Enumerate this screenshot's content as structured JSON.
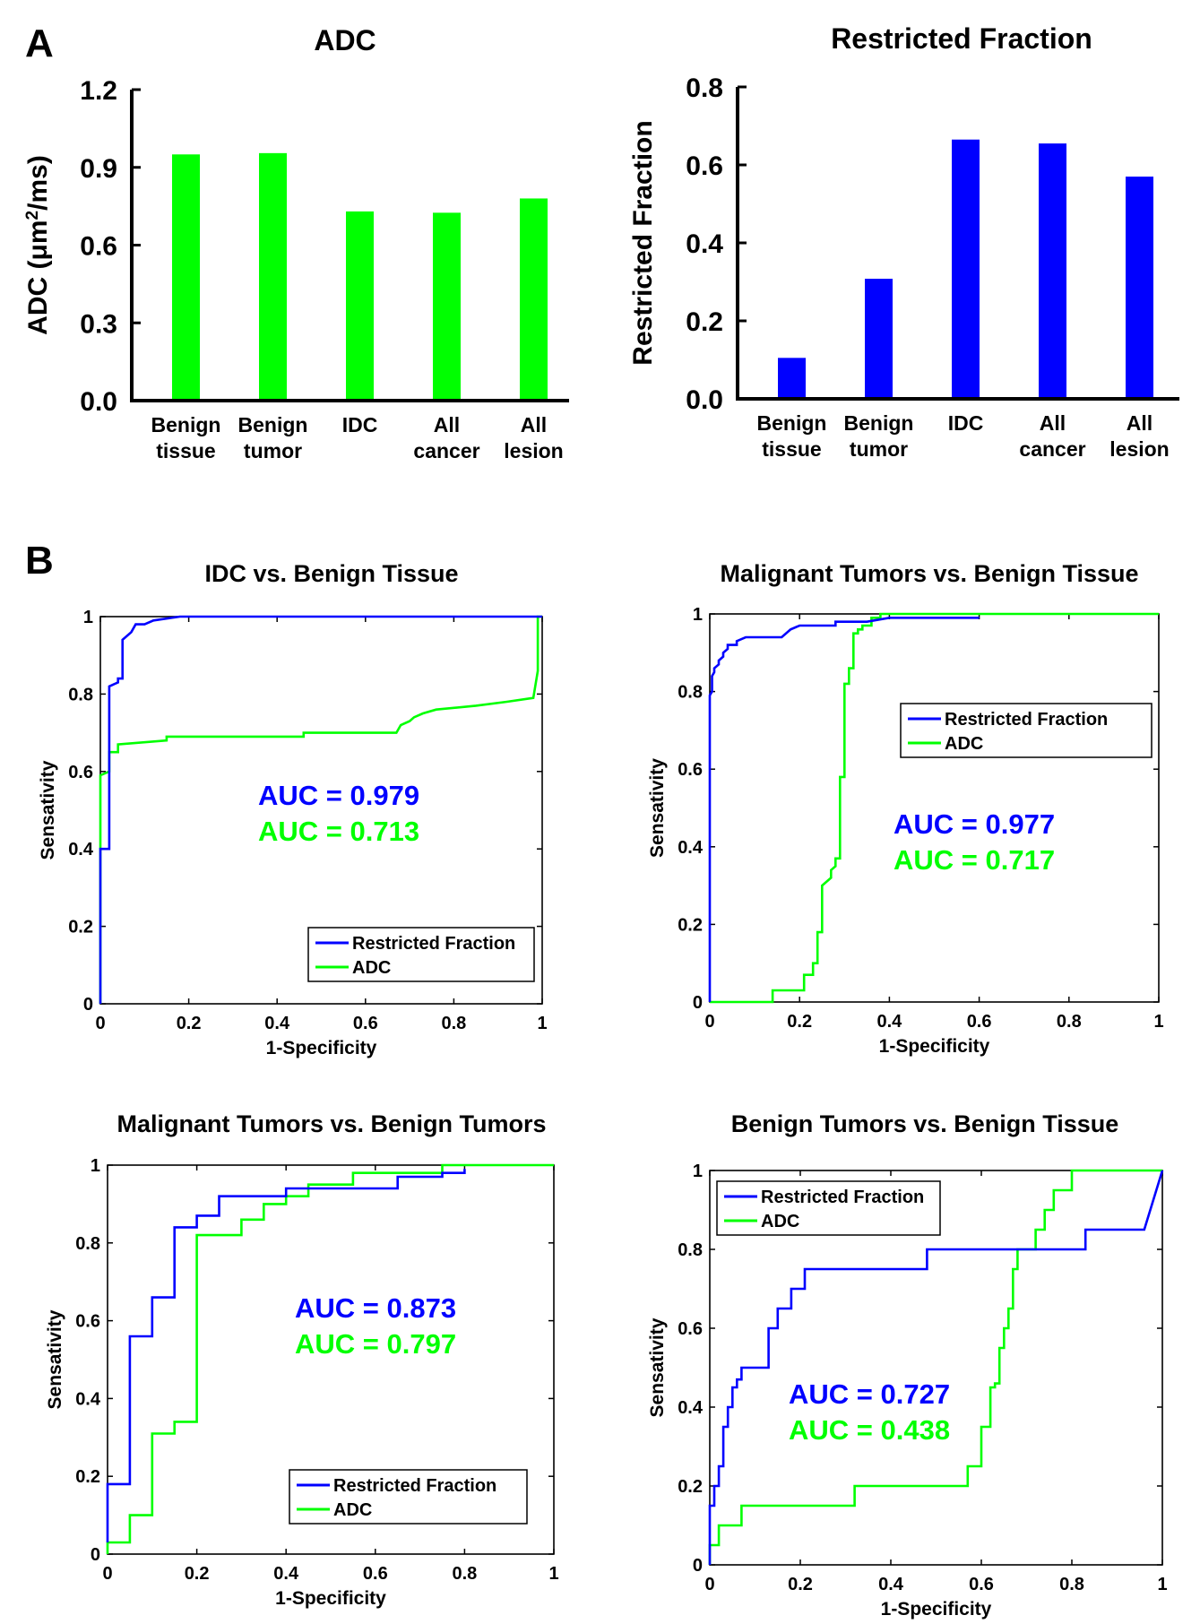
{
  "panel_labels": {
    "a": "A",
    "b": "B"
  },
  "colors": {
    "restricted": "#0000FF",
    "adc": "#00FF00",
    "axis": "#000000"
  },
  "chart_data": [
    {
      "type": "bar",
      "title": "ADC",
      "ylabel": "ADC (μm²/ms)",
      "ylabel_main": "ADC (μm",
      "ylabel_sup": "2",
      "ylabel_tail": "/ms)",
      "ylim": [
        0,
        1.2
      ],
      "yticks": [
        "0.0",
        "0.3",
        "0.6",
        "0.9",
        "1.2"
      ],
      "categories": [
        [
          "Benign",
          "tissue"
        ],
        [
          "Benign",
          "tumor"
        ],
        [
          "IDC",
          ""
        ],
        [
          "All",
          "cancer"
        ],
        [
          "All",
          "lesion"
        ]
      ],
      "values": [
        0.95,
        0.955,
        0.73,
        0.725,
        0.78
      ],
      "color": "#00FF00"
    },
    {
      "type": "bar",
      "title": "Restricted Fraction",
      "ylabel": "Restricted Fraction",
      "ylim": [
        0,
        0.8
      ],
      "yticks": [
        "0.0",
        "0.2",
        "0.4",
        "0.6",
        "0.8"
      ],
      "categories": [
        [
          "Benign",
          "tissue"
        ],
        [
          "Benign",
          "tumor"
        ],
        [
          "IDC",
          ""
        ],
        [
          "All",
          "cancer"
        ],
        [
          "All",
          "lesion"
        ]
      ],
      "values": [
        0.105,
        0.308,
        0.665,
        0.655,
        0.57
      ],
      "color": "#0000FF"
    },
    {
      "type": "line",
      "title": "IDC vs. Benign Tissue",
      "xlabel": "1-Specificity",
      "ylabel": "Sensativity",
      "xlim": [
        0,
        1
      ],
      "ylim": [
        0,
        1
      ],
      "xticks": [
        "0",
        "0.2",
        "0.4",
        "0.6",
        "0.8",
        "1"
      ],
      "yticks": [
        "0",
        "0.2",
        "0.4",
        "0.6",
        "0.8",
        "1"
      ],
      "legend": "bottom-right",
      "series": [
        {
          "name": "Restricted Fraction",
          "color": "#0000FF",
          "x": [
            0,
            0,
            0.02,
            0.02,
            0.04,
            0.04,
            0.05,
            0.05,
            0.07,
            0.08,
            0.1,
            0.12,
            0.18,
            1
          ],
          "y": [
            0,
            0.4,
            0.4,
            0.82,
            0.83,
            0.84,
            0.84,
            0.94,
            0.96,
            0.98,
            0.98,
            0.99,
            1,
            1
          ]
        },
        {
          "name": "ADC",
          "color": "#00FF00",
          "x": [
            0,
            0,
            0.02,
            0.02,
            0.04,
            0.04,
            0.15,
            0.15,
            0.46,
            0.46,
            0.67,
            0.68,
            0.7,
            0.71,
            0.73,
            0.76,
            0.85,
            0.92,
            0.98,
            0.99,
            0.99,
            1
          ],
          "y": [
            0,
            0.59,
            0.6,
            0.65,
            0.65,
            0.67,
            0.68,
            0.69,
            0.69,
            0.7,
            0.7,
            0.72,
            0.73,
            0.74,
            0.75,
            0.76,
            0.77,
            0.78,
            0.79,
            0.86,
            1,
            1
          ]
        }
      ],
      "auc": [
        {
          "text": "AUC = 0.979",
          "color": "#0000FF"
        },
        {
          "text": "AUC =  0.713",
          "color": "#00FF00"
        }
      ]
    },
    {
      "type": "line",
      "title": "Malignant Tumors vs. Benign Tissue",
      "xlabel": "1-Specificity",
      "ylabel": "Sensativity",
      "xlim": [
        0,
        1
      ],
      "ylim": [
        0,
        1
      ],
      "xticks": [
        "0",
        "0.2",
        "0.4",
        "0.6",
        "0.8",
        "1"
      ],
      "yticks": [
        "0",
        "0.2",
        "0.4",
        "0.6",
        "0.8",
        "1"
      ],
      "legend": "top-right",
      "series": [
        {
          "name": "Restricted Fraction",
          "color": "#0000FF",
          "x": [
            0,
            0,
            0.005,
            0.005,
            0.01,
            0.01,
            0.02,
            0.02,
            0.03,
            0.03,
            0.04,
            0.04,
            0.06,
            0.06,
            0.08,
            0.16,
            0.18,
            0.2,
            0.28,
            0.28,
            0.35,
            0.4,
            0.6
          ],
          "y": [
            0,
            0.79,
            0.8,
            0.84,
            0.85,
            0.86,
            0.87,
            0.88,
            0.89,
            0.9,
            0.91,
            0.92,
            0.92,
            0.93,
            0.94,
            0.94,
            0.96,
            0.97,
            0.97,
            0.98,
            0.98,
            0.99,
            0.99
          ]
        },
        {
          "name": "ADC",
          "color": "#00FF00",
          "x": [
            0,
            0.14,
            0.14,
            0.21,
            0.21,
            0.23,
            0.23,
            0.24,
            0.24,
            0.25,
            0.25,
            0.27,
            0.27,
            0.28,
            0.28,
            0.29,
            0.29,
            0.3,
            0.3,
            0.31,
            0.31,
            0.32,
            0.32,
            0.33,
            0.33,
            0.34,
            0.34,
            0.36,
            0.36,
            0.38,
            0.38,
            1
          ],
          "y": [
            0,
            0,
            0.03,
            0.03,
            0.07,
            0.07,
            0.1,
            0.1,
            0.18,
            0.18,
            0.3,
            0.32,
            0.34,
            0.35,
            0.37,
            0.37,
            0.58,
            0.58,
            0.82,
            0.82,
            0.86,
            0.86,
            0.95,
            0.95,
            0.96,
            0.96,
            0.97,
            0.97,
            0.99,
            0.99,
            1,
            1
          ]
        }
      ],
      "auc": [
        {
          "text": "AUC = 0.977",
          "color": "#0000FF"
        },
        {
          "text": "AUC =  0.717",
          "color": "#00FF00"
        }
      ]
    },
    {
      "type": "line",
      "title": "Malignant Tumors vs. Benign Tumors",
      "xlabel": "1-Specificity",
      "ylabel": "Sensativity",
      "xlim": [
        0,
        1
      ],
      "ylim": [
        0,
        1
      ],
      "xticks": [
        "0",
        "0.2",
        "0.4",
        "0.6",
        "0.8",
        "1"
      ],
      "yticks": [
        "0",
        "0.2",
        "0.4",
        "0.6",
        "0.8",
        "1"
      ],
      "legend": "bottom-right",
      "series": [
        {
          "name": "Restricted Fraction",
          "color": "#0000FF",
          "x": [
            0,
            0,
            0.05,
            0.05,
            0.1,
            0.1,
            0.15,
            0.15,
            0.2,
            0.2,
            0.25,
            0.25,
            0.4,
            0.4,
            0.65,
            0.65,
            0.75,
            0.75,
            0.8,
            0.8
          ],
          "y": [
            0.03,
            0.18,
            0.18,
            0.56,
            0.56,
            0.66,
            0.66,
            0.84,
            0.84,
            0.87,
            0.87,
            0.92,
            0.92,
            0.94,
            0.94,
            0.97,
            0.97,
            0.98,
            0.98,
            0.99
          ]
        },
        {
          "name": "ADC",
          "color": "#00FF00",
          "x": [
            0,
            0,
            0.05,
            0.05,
            0.1,
            0.1,
            0.15,
            0.15,
            0.2,
            0.2,
            0.3,
            0.3,
            0.35,
            0.35,
            0.4,
            0.4,
            0.45,
            0.45,
            0.55,
            0.55,
            0.75,
            0.75,
            1
          ],
          "y": [
            0,
            0.03,
            0.03,
            0.1,
            0.1,
            0.31,
            0.31,
            0.34,
            0.34,
            0.82,
            0.82,
            0.86,
            0.86,
            0.9,
            0.9,
            0.92,
            0.92,
            0.95,
            0.95,
            0.98,
            0.98,
            1,
            1
          ]
        }
      ],
      "auc": [
        {
          "text": "AUC = 0.873",
          "color": "#0000FF"
        },
        {
          "text": "AUC =  0.797",
          "color": "#00FF00"
        }
      ]
    },
    {
      "type": "line",
      "title": "Benign Tumors vs. Benign Tissue",
      "xlabel": "1-Specificity",
      "ylabel": "Sensativity",
      "xlim": [
        0,
        1
      ],
      "ylim": [
        0,
        1
      ],
      "xticks": [
        "0",
        "0.2",
        "0.4",
        "0.6",
        "0.8",
        "1"
      ],
      "yticks": [
        "0",
        "0.2",
        "0.4",
        "0.6",
        "0.8",
        "1"
      ],
      "legend": "top-left",
      "series": [
        {
          "name": "Restricted Fraction",
          "color": "#0000FF",
          "x": [
            0,
            0,
            0.01,
            0.01,
            0.02,
            0.02,
            0.03,
            0.03,
            0.04,
            0.04,
            0.05,
            0.05,
            0.06,
            0.06,
            0.07,
            0.07,
            0.13,
            0.13,
            0.15,
            0.15,
            0.18,
            0.18,
            0.21,
            0.21,
            0.27,
            0.27,
            0.48,
            0.48,
            0.83,
            0.83,
            0.96,
            1
          ],
          "y": [
            0,
            0.15,
            0.15,
            0.2,
            0.2,
            0.25,
            0.25,
            0.35,
            0.35,
            0.4,
            0.4,
            0.45,
            0.45,
            0.47,
            0.47,
            0.5,
            0.5,
            0.6,
            0.6,
            0.65,
            0.65,
            0.7,
            0.7,
            0.75,
            0.75,
            0.75,
            0.75,
            0.8,
            0.8,
            0.85,
            0.85,
            1
          ]
        },
        {
          "name": "ADC",
          "color": "#00FF00",
          "x": [
            0,
            0,
            0.02,
            0.02,
            0.07,
            0.07,
            0.32,
            0.32,
            0.57,
            0.57,
            0.6,
            0.6,
            0.62,
            0.62,
            0.63,
            0.63,
            0.64,
            0.64,
            0.65,
            0.65,
            0.66,
            0.66,
            0.67,
            0.67,
            0.68,
            0.68,
            0.69,
            0.69,
            0.7,
            0.7,
            0.72,
            0.72,
            0.74,
            0.74,
            0.76,
            0.76,
            0.8,
            0.8,
            1
          ],
          "y": [
            0,
            0.05,
            0.05,
            0.1,
            0.1,
            0.15,
            0.15,
            0.2,
            0.2,
            0.25,
            0.25,
            0.35,
            0.35,
            0.45,
            0.45,
            0.46,
            0.46,
            0.55,
            0.55,
            0.6,
            0.6,
            0.65,
            0.65,
            0.75,
            0.75,
            0.8,
            0.8,
            0.8,
            0.8,
            0.8,
            0.8,
            0.85,
            0.85,
            0.9,
            0.9,
            0.95,
            0.95,
            1,
            1
          ]
        }
      ],
      "auc": [
        {
          "text": "AUC = 0.727",
          "color": "#0000FF"
        },
        {
          "text": "AUC =  0.438",
          "color": "#00FF00"
        }
      ]
    }
  ]
}
